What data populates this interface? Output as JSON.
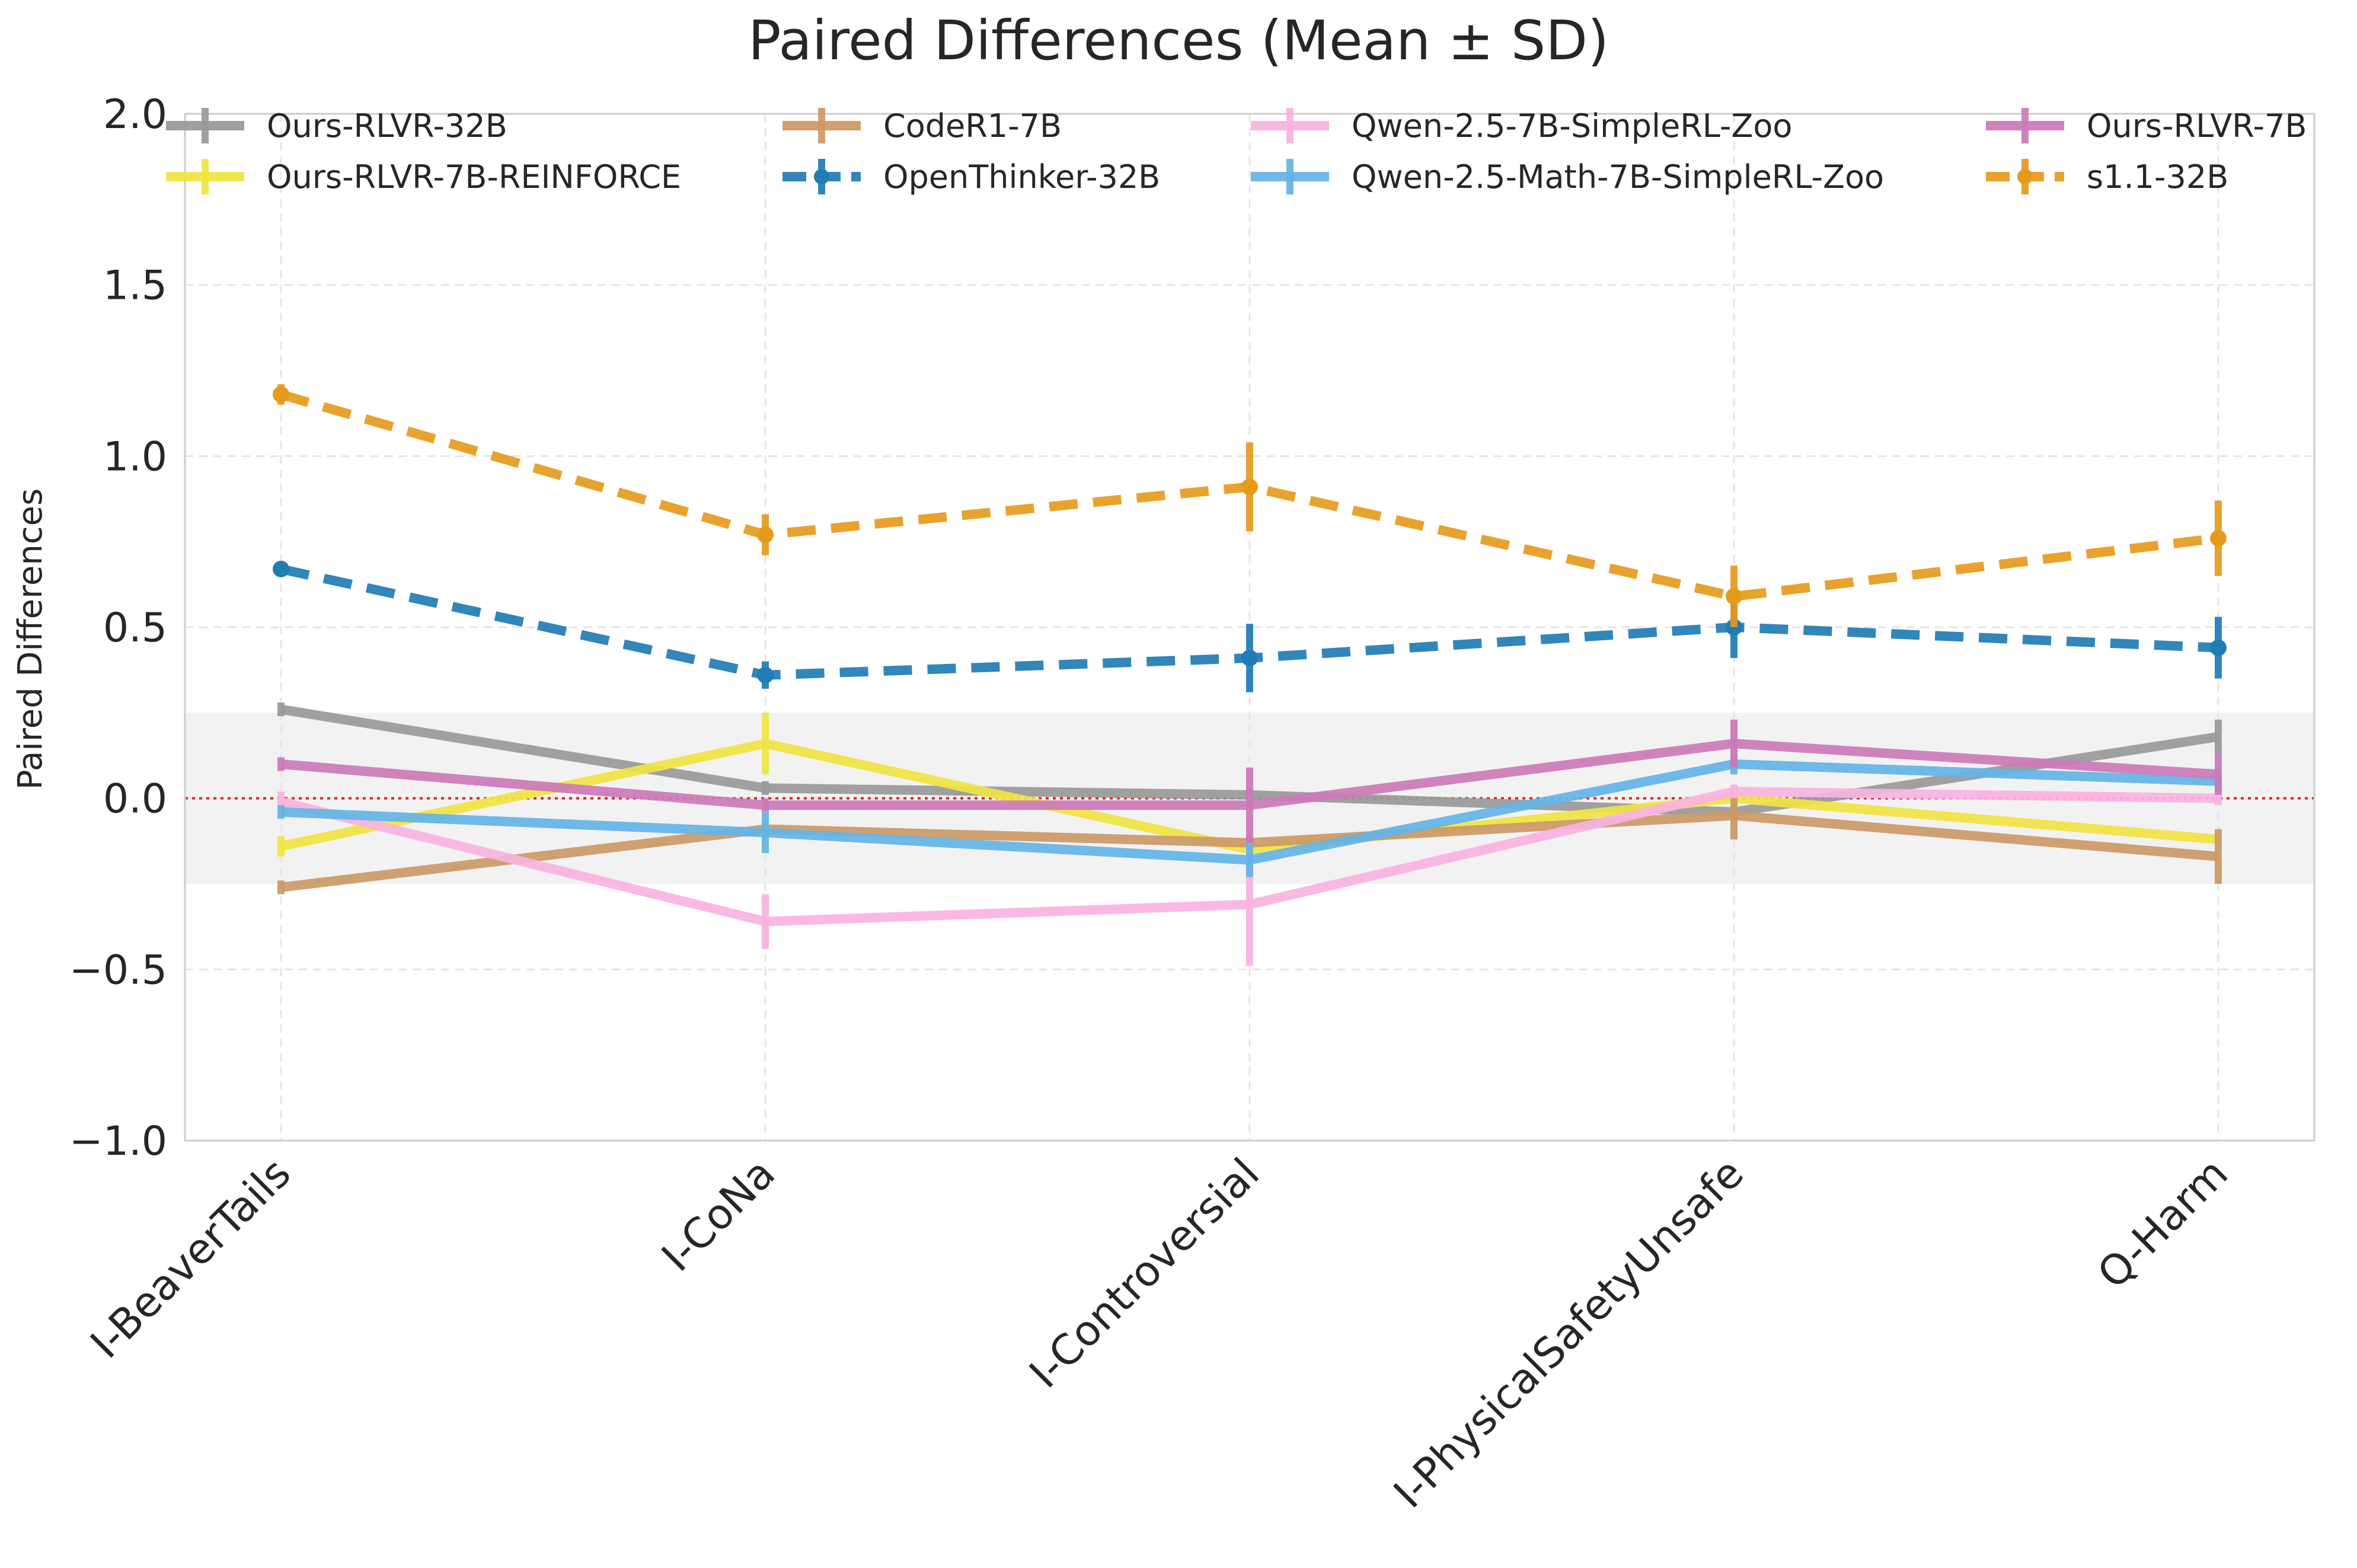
{
  "chart_data": {
    "type": "line",
    "title": "Paired Differences (Mean ± SD)",
    "xlabel": "",
    "ylabel": "Paired Differences",
    "ylim": [
      -1.0,
      2.0
    ],
    "yticks": [
      -1.0,
      -0.5,
      0.0,
      0.5,
      1.0,
      1.5,
      2.0
    ],
    "ytick_labels": [
      "−1.0",
      "−0.5",
      "0.0",
      "0.5",
      "1.0",
      "1.5",
      "2.0"
    ],
    "categories": [
      "I-BeaverTails",
      "I-CoNa",
      "I-Controversial",
      "I-PhysicalSafetyUnsafe",
      "Q-Harm"
    ],
    "grid": true,
    "legend_position": "top",
    "reference_line": {
      "y": 0.0,
      "color": "#d62728",
      "style": "dotted"
    },
    "reference_band": {
      "y_min": -0.25,
      "y_max": 0.25,
      "color": "#f2f2f2"
    },
    "series": [
      {
        "name": "Ours-RLVR-32B",
        "color": "#999999",
        "dashed": false,
        "marker": false,
        "values": [
          0.26,
          0.03,
          0.01,
          -0.04,
          0.18
        ],
        "errors": [
          0.02,
          0.02,
          0.02,
          0.02,
          0.05
        ]
      },
      {
        "name": "Ours-RLVR-7B-REINFORCE",
        "color": "#f0e442",
        "dashed": false,
        "marker": false,
        "values": [
          -0.14,
          0.16,
          -0.15,
          0.0,
          -0.12
        ],
        "errors": [
          0.03,
          0.09,
          0.02,
          0.02,
          0.02
        ]
      },
      {
        "name": "CodeR1-7B",
        "color": "#cc9966",
        "dashed": false,
        "marker": false,
        "values": [
          -0.26,
          -0.09,
          -0.13,
          -0.05,
          -0.17
        ],
        "errors": [
          0.02,
          0.02,
          0.02,
          0.07,
          0.08
        ]
      },
      {
        "name": "OpenThinker-32B",
        "color": "#1f7cb4",
        "dashed": true,
        "marker": true,
        "values": [
          0.67,
          0.36,
          0.41,
          0.5,
          0.44
        ],
        "errors": [
          0.02,
          0.04,
          0.1,
          0.09,
          0.09
        ]
      },
      {
        "name": "Qwen-2.5-7B-SimpleRL-Zoo",
        "color": "#f9b3df",
        "dashed": false,
        "marker": false,
        "values": [
          -0.01,
          -0.36,
          -0.31,
          0.02,
          0.0
        ],
        "errors": [
          0.03,
          0.08,
          0.18,
          0.02,
          0.02
        ]
      },
      {
        "name": "Qwen-2.5-Math-7B-SimpleRL-Zoo",
        "color": "#63b4e6",
        "dashed": false,
        "marker": false,
        "values": [
          -0.04,
          -0.1,
          -0.18,
          0.1,
          0.05
        ],
        "errors": [
          0.02,
          0.06,
          0.05,
          0.03,
          0.03
        ]
      },
      {
        "name": "Ours-RLVR-7B",
        "color": "#cc79b8",
        "dashed": false,
        "marker": false,
        "values": [
          0.1,
          -0.02,
          -0.02,
          0.16,
          0.07
        ],
        "errors": [
          0.02,
          0.02,
          0.11,
          0.07,
          0.06
        ]
      },
      {
        "name": "s1.1-32B",
        "color": "#e69a1c",
        "dashed": true,
        "marker": true,
        "values": [
          1.18,
          0.77,
          0.91,
          0.59,
          0.76
        ],
        "errors": [
          0.03,
          0.06,
          0.13,
          0.09,
          0.11
        ]
      }
    ]
  }
}
